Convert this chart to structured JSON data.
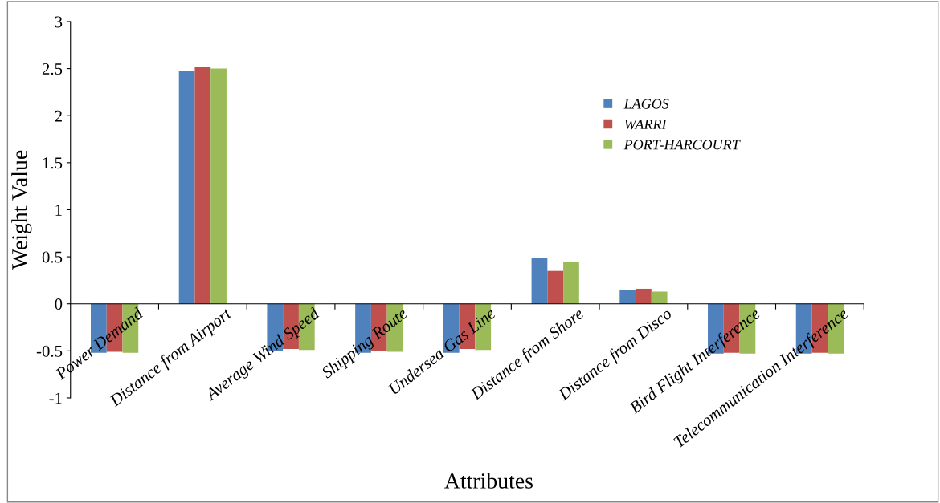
{
  "chart_data": {
    "type": "bar",
    "xlabel": "Attributes",
    "ylabel": "Weight Value",
    "categories": [
      "Power Demand",
      "Distance from Airport",
      "Average Wind Speed",
      "Shipping Route",
      "Undersea Gas Line",
      "Distance from Shore",
      "Distance from Disco",
      "Bird Flight Interference",
      "Telecommunication Interference"
    ],
    "series": [
      {
        "name": "LAGOS",
        "color": "#4f81bd",
        "values": [
          -0.52,
          2.48,
          -0.5,
          -0.52,
          -0.52,
          0.49,
          0.15,
          -0.53,
          -0.53
        ]
      },
      {
        "name": "WARRI",
        "color": "#c0504d",
        "values": [
          -0.51,
          2.52,
          -0.48,
          -0.5,
          -0.48,
          0.35,
          0.16,
          -0.52,
          -0.52
        ]
      },
      {
        "name": "PORT-HARCOURT",
        "color": "#9bbb59",
        "values": [
          -0.52,
          2.5,
          -0.49,
          -0.51,
          -0.49,
          0.44,
          0.13,
          -0.53,
          -0.53
        ]
      }
    ],
    "ylim": [
      -1,
      3
    ],
    "yticks": [
      -1,
      -0.5,
      0,
      0.5,
      1,
      1.5,
      2,
      2.5,
      3
    ],
    "grid": false,
    "legend": "top right"
  }
}
